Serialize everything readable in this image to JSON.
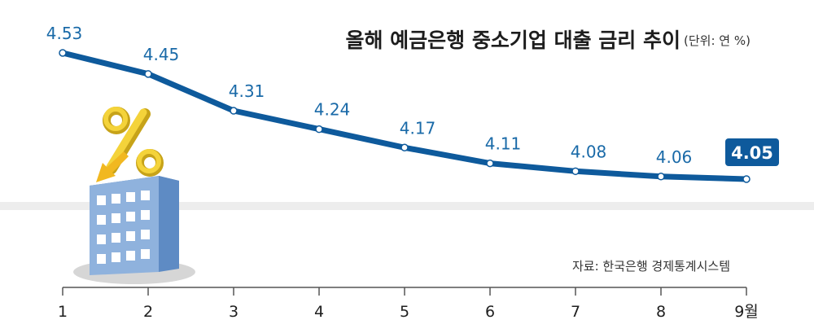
{
  "chart_data": {
    "type": "line",
    "title": "올해 예금은행 중소기업 대출 금리 추이",
    "unit": "(단위: 연 %)",
    "source": "자료: 한국은행 경제통계시스템",
    "x_labels": [
      "1",
      "2",
      "3",
      "4",
      "5",
      "6",
      "7",
      "8",
      "9월"
    ],
    "series": [
      {
        "values": [
          4.53,
          4.45,
          4.31,
          4.24,
          4.17,
          4.11,
          4.08,
          4.06,
          4.05
        ]
      }
    ],
    "ylim": [
      3.81,
      4.59
    ],
    "grid": false,
    "highlight_index": 8,
    "colors": {
      "line": "#0e5a9c",
      "label": "#1a6aa8",
      "highlight_box": "#0e5a9c",
      "band": "#ededed"
    }
  }
}
